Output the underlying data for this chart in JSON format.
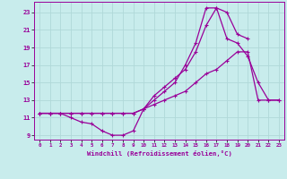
{
  "xlabel": "Windchill (Refroidissement éolien,°C)",
  "bg_color": "#c8ecec",
  "grid_color": "#b0d8d8",
  "line_color": "#990099",
  "xlim": [
    -0.5,
    23.5
  ],
  "ylim": [
    8.5,
    24.2
  ],
  "xticks": [
    0,
    1,
    2,
    3,
    4,
    5,
    6,
    7,
    8,
    9,
    10,
    11,
    12,
    13,
    14,
    15,
    16,
    17,
    18,
    19,
    20,
    21,
    22,
    23
  ],
  "yticks": [
    9,
    11,
    13,
    15,
    17,
    19,
    21,
    23
  ],
  "line1_x": [
    0,
    1,
    2,
    3,
    4,
    5,
    6,
    7,
    8,
    9,
    10,
    11,
    12,
    13,
    14,
    15,
    16,
    17,
    18,
    19,
    20,
    21,
    22,
    23
  ],
  "line1_y": [
    11.5,
    11.5,
    11.5,
    11.0,
    10.5,
    10.3,
    9.5,
    9.0,
    9.0,
    9.5,
    12.0,
    13.0,
    14.0,
    15.0,
    17.0,
    19.5,
    23.5,
    23.5,
    20.0,
    19.5,
    18.0,
    15.0,
    13.0,
    13.0
  ],
  "line2_x": [
    0,
    1,
    2,
    3,
    4,
    5,
    6,
    7,
    8,
    9,
    10,
    11,
    12,
    13,
    14,
    15,
    16,
    17,
    18,
    19,
    20,
    21,
    22,
    23
  ],
  "line2_y": [
    11.5,
    11.5,
    11.5,
    11.5,
    11.5,
    11.5,
    11.5,
    11.5,
    11.5,
    11.5,
    12.0,
    12.5,
    13.0,
    13.5,
    14.0,
    15.0,
    16.0,
    16.5,
    17.5,
    18.5,
    18.5,
    13.0,
    13.0,
    13.0
  ],
  "line3_x": [
    0,
    1,
    2,
    3,
    4,
    5,
    6,
    7,
    8,
    9,
    10,
    11,
    12,
    13,
    14,
    15,
    16,
    17,
    18,
    19,
    20
  ],
  "line3_y": [
    11.5,
    11.5,
    11.5,
    11.5,
    11.5,
    11.5,
    11.5,
    11.5,
    11.5,
    11.5,
    12.0,
    13.5,
    14.5,
    15.5,
    16.5,
    18.5,
    21.5,
    23.5,
    23.0,
    20.5,
    20.0
  ]
}
